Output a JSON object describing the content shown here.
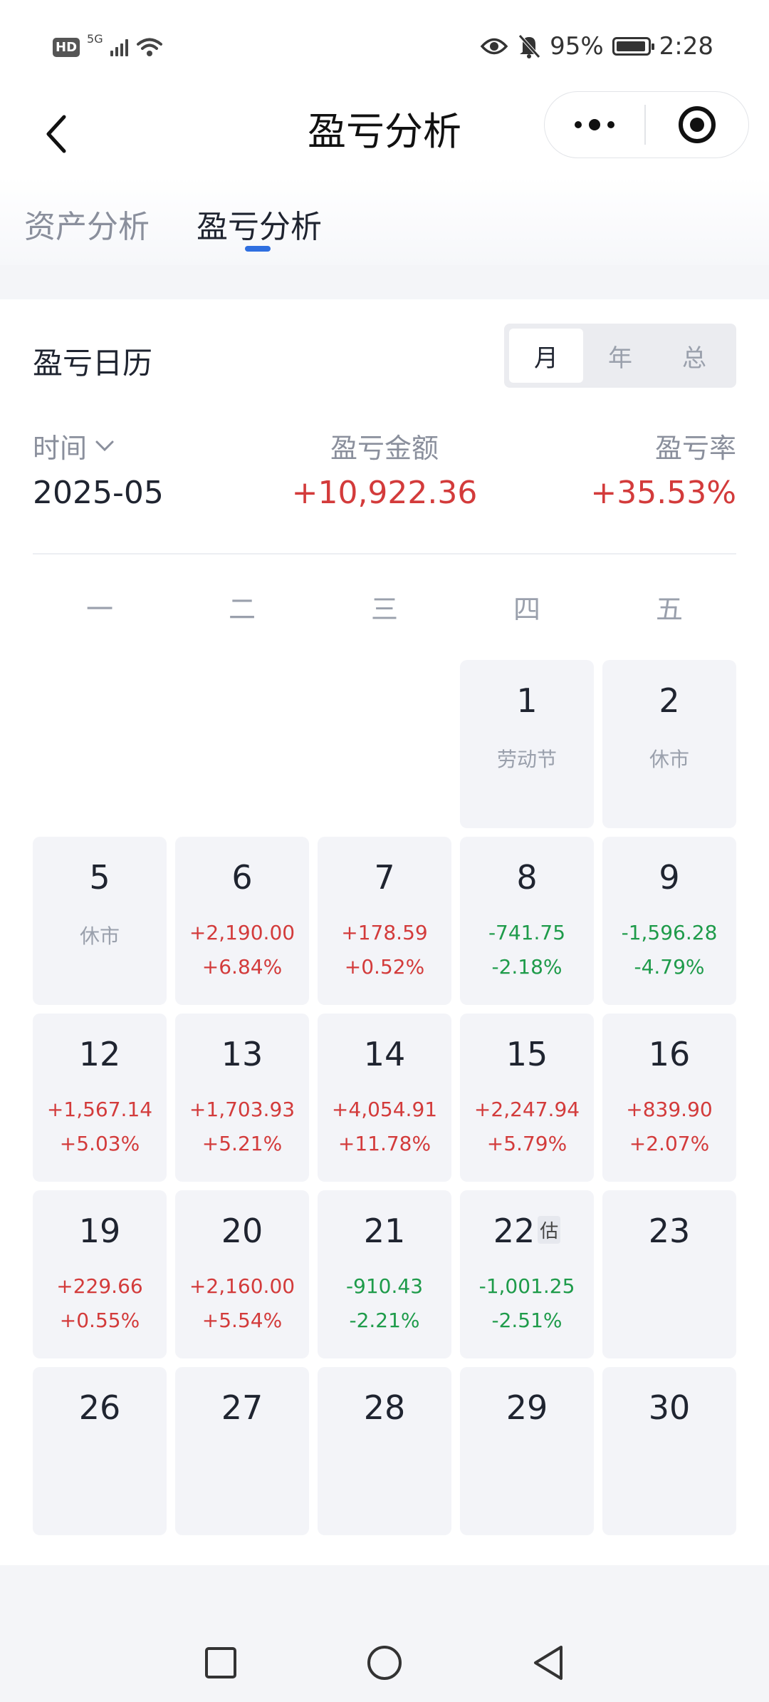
{
  "status_bar": {
    "hd_badge": "HD",
    "network": "5G",
    "battery_percent": "95%",
    "time": "2:28",
    "icons": [
      "signal-icon",
      "wifi-icon",
      "eye-icon",
      "bell-off-icon",
      "battery-icon"
    ]
  },
  "nav": {
    "title": "盈亏分析",
    "icons": [
      "back-icon",
      "more-icon",
      "close-icon"
    ]
  },
  "tabs": [
    {
      "label": "资产分析",
      "active": false
    },
    {
      "label": "盈亏分析",
      "active": true
    }
  ],
  "accent_color": "#2f6fe0",
  "calendar": {
    "title": "盈亏日历",
    "segments": [
      {
        "label": "月",
        "active": true
      },
      {
        "label": "年",
        "active": false
      },
      {
        "label": "总",
        "active": false
      }
    ],
    "headers": {
      "time_label": "时间",
      "amount_label": "盈亏金额",
      "rate_label": "盈亏率"
    },
    "summary": {
      "month": "2025-05",
      "amount": "+10,922.36",
      "rate": "+35.53%"
    },
    "weekdays": [
      "一",
      "二",
      "三",
      "四",
      "五"
    ],
    "days": [
      {
        "day": "1",
        "note": "劳动节"
      },
      {
        "day": "2",
        "note": "休市"
      },
      {
        "day": "5",
        "note": "休市"
      },
      {
        "day": "6",
        "amount": "+2,190.00",
        "rate": "+6.84%",
        "dir": "up"
      },
      {
        "day": "7",
        "amount": "+178.59",
        "rate": "+0.52%",
        "dir": "up"
      },
      {
        "day": "8",
        "amount": "-741.75",
        "rate": "-2.18%",
        "dir": "down"
      },
      {
        "day": "9",
        "amount": "-1,596.28",
        "rate": "-4.79%",
        "dir": "down"
      },
      {
        "day": "12",
        "amount": "+1,567.14",
        "rate": "+5.03%",
        "dir": "up"
      },
      {
        "day": "13",
        "amount": "+1,703.93",
        "rate": "+5.21%",
        "dir": "up"
      },
      {
        "day": "14",
        "amount": "+4,054.91",
        "rate": "+11.78%",
        "dir": "up"
      },
      {
        "day": "15",
        "amount": "+2,247.94",
        "rate": "+5.79%",
        "dir": "up"
      },
      {
        "day": "16",
        "amount": "+839.90",
        "rate": "+2.07%",
        "dir": "up"
      },
      {
        "day": "19",
        "amount": "+229.66",
        "rate": "+0.55%",
        "dir": "up"
      },
      {
        "day": "20",
        "amount": "+2,160.00",
        "rate": "+5.54%",
        "dir": "up"
      },
      {
        "day": "21",
        "amount": "-910.43",
        "rate": "-2.21%",
        "dir": "down"
      },
      {
        "day": "22",
        "badge": "估",
        "amount": "-1,001.25",
        "rate": "-2.51%",
        "dir": "down"
      },
      {
        "day": "23"
      },
      {
        "day": "26"
      },
      {
        "day": "27"
      },
      {
        "day": "28"
      },
      {
        "day": "29"
      },
      {
        "day": "30"
      }
    ],
    "up_color": "#d33b3b",
    "down_color": "#1e9b4a"
  },
  "system_nav": [
    "recent-apps-icon",
    "home-icon",
    "back-triangle-icon"
  ]
}
